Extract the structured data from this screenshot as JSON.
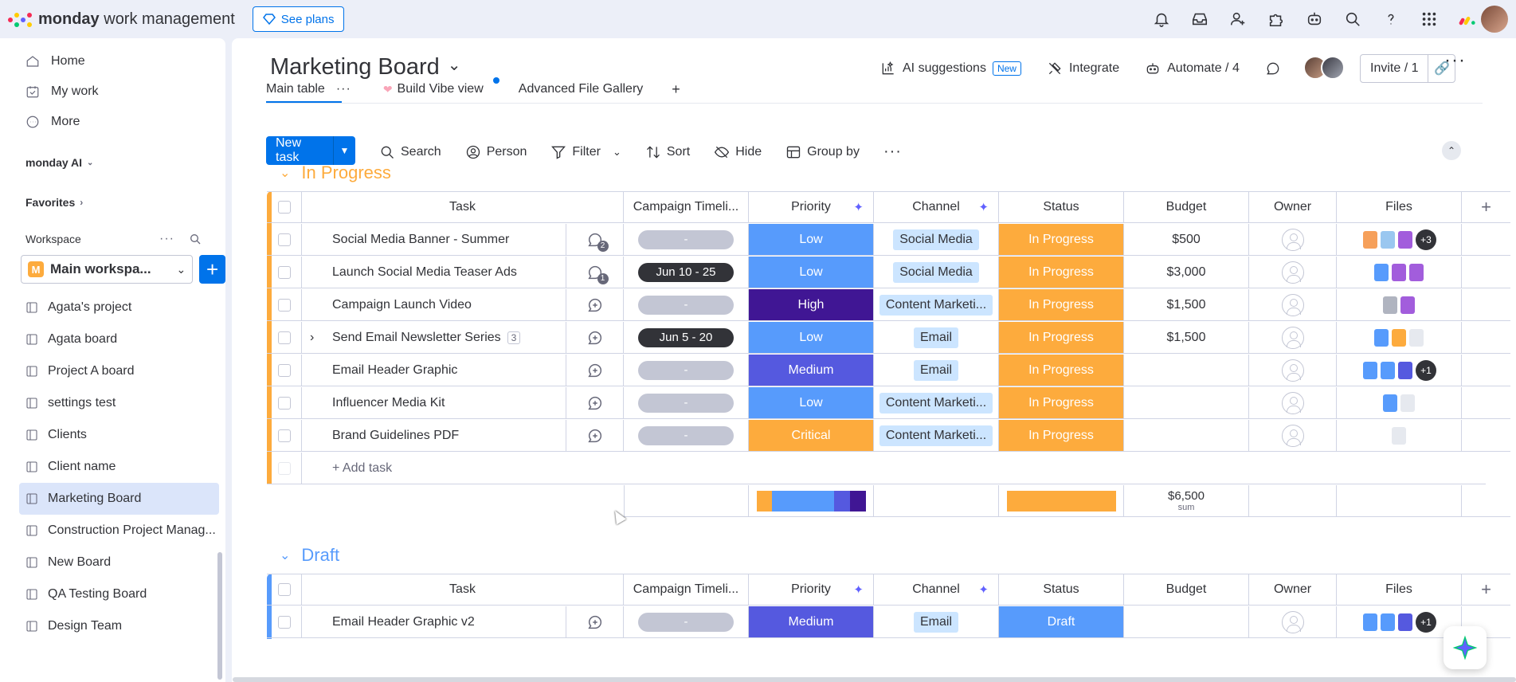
{
  "app": {
    "brand_bold": "monday",
    "brand_rest": " work management",
    "see_plans": "See plans"
  },
  "sidebar": {
    "nav": [
      {
        "label": "Home",
        "icon": "home-icon"
      },
      {
        "label": "My work",
        "icon": "calendar-check-icon"
      },
      {
        "label": "More",
        "icon": "more-circle-icon"
      }
    ],
    "monday_ai": "monday AI",
    "favorites": "Favorites",
    "workspace_label": "Workspace",
    "workspace_name": "Main workspa...",
    "workspace_initial": "M",
    "boards": [
      "Agata's project",
      "Agata board",
      "Project A board",
      "settings test",
      "Clients",
      "Client name",
      "Marketing Board",
      "Construction Project Manag...",
      "New Board",
      "QA Testing Board",
      "Design Team"
    ],
    "active_board": "Marketing Board"
  },
  "board": {
    "title": "Marketing Board",
    "ai_suggestions": "AI suggestions",
    "new_badge": "New",
    "integrate": "Integrate",
    "automate": "Automate / 4",
    "invite": "Invite / 1",
    "tabs": [
      "Main table",
      "Build Vibe view",
      "Advanced File Gallery"
    ],
    "toolbar": {
      "new_task": "New task",
      "search": "Search",
      "person": "Person",
      "filter": "Filter",
      "sort": "Sort",
      "hide": "Hide",
      "group_by": "Group by"
    }
  },
  "columns": [
    "Task",
    "Campaign Timeli...",
    "Priority",
    "Channel",
    "Status",
    "Budget",
    "Owner",
    "Files"
  ],
  "colors": {
    "low": "#579bfc",
    "high": "#401694",
    "medium": "#5559df",
    "critical": "#fdab3d",
    "in_progress": "#fdab3d",
    "draft": "#579bfc",
    "accent": "#0073ea",
    "in_progress_group": "#fdab3d",
    "draft_group": "#579bfc"
  },
  "groups": [
    {
      "name": "In Progress",
      "rows": [
        {
          "task": "Social Media Banner - Summer",
          "updates": "2",
          "timeline": "-",
          "priority": "Low",
          "channel": "Social Media",
          "status": "In Progress",
          "budget": "$500",
          "files_extra": "+3"
        },
        {
          "task": "Launch Social Media Teaser Ads",
          "updates": "1",
          "timeline": "Jun 10 - 25",
          "priority": "Low",
          "channel": "Social Media",
          "status": "In Progress",
          "budget": "$3,000",
          "files_extra": ""
        },
        {
          "task": "Campaign Launch Video",
          "updates": "",
          "timeline": "-",
          "priority": "High",
          "channel": "Content Marketi...",
          "status": "In Progress",
          "budget": "$1,500",
          "files_extra": ""
        },
        {
          "task": "Send Email Newsletter Series",
          "subitems": "3",
          "updates": "",
          "timeline": "Jun 5 - 20",
          "priority": "Low",
          "channel": "Email",
          "status": "In Progress",
          "budget": "$1,500",
          "files_extra": ""
        },
        {
          "task": "Email Header Graphic",
          "updates": "",
          "timeline": "-",
          "priority": "Medium",
          "channel": "Email",
          "status": "In Progress",
          "budget": "",
          "files_extra": "+1"
        },
        {
          "task": "Influencer Media Kit",
          "updates": "",
          "timeline": "-",
          "priority": "Low",
          "channel": "Content Marketi...",
          "status": "In Progress",
          "budget": "",
          "files_extra": ""
        },
        {
          "task": "Brand Guidelines PDF",
          "updates": "",
          "timeline": "-",
          "priority": "Critical",
          "channel": "Content Marketi...",
          "status": "In Progress",
          "budget": "",
          "files_extra": ""
        }
      ],
      "add_task": "+ Add task",
      "sum_value": "$6,500",
      "sum_label": "sum"
    },
    {
      "name": "Draft",
      "rows": [
        {
          "task": "Email Header Graphic v2",
          "updates": "",
          "timeline": "-",
          "priority": "Medium",
          "channel": "Email",
          "status": "Draft",
          "budget": "",
          "files_extra": "+1"
        }
      ]
    }
  ]
}
